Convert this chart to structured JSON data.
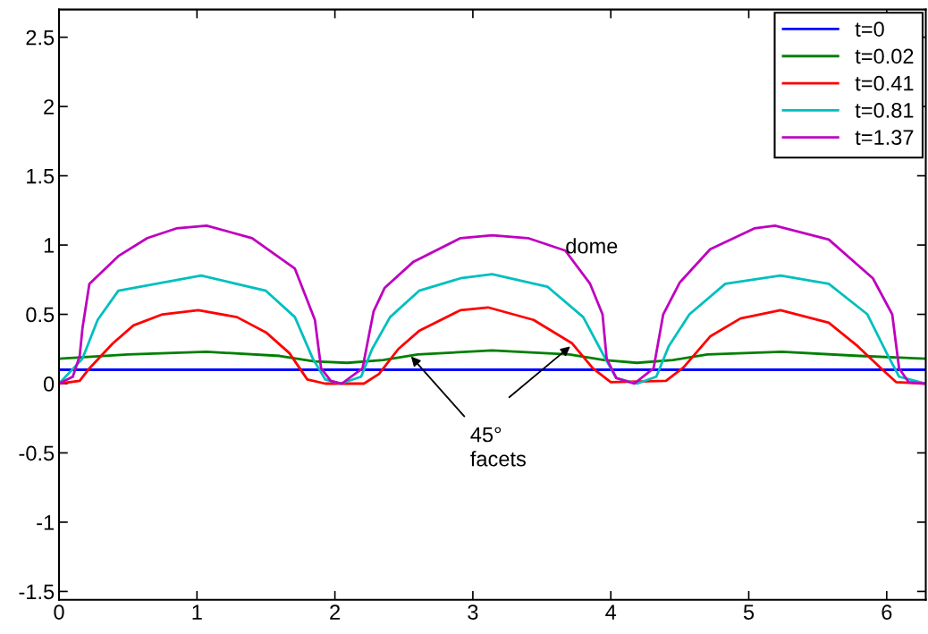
{
  "chart_data": {
    "type": "line",
    "xlim": [
      0,
      6.2832
    ],
    "ylim": [
      -1.56,
      2.7
    ],
    "xticks": [
      0,
      1,
      2,
      3,
      4,
      5,
      6
    ],
    "yticks": [
      -1.5,
      -1,
      -0.5,
      0,
      0.5,
      1,
      1.5,
      2,
      2.5
    ],
    "grid": false,
    "legend": "top right",
    "line_style": "solid",
    "marker": "none",
    "series": [
      {
        "name": "t=0",
        "color": "#0000ff",
        "x": [
          0,
          1,
          2,
          3,
          4,
          5,
          6.2832
        ],
        "values": [
          0.1,
          0.1,
          0.1,
          0.1,
          0.1,
          0.1,
          0.1
        ]
      },
      {
        "name": "t=0.02",
        "color": "#008000",
        "x": [
          0,
          0.5,
          1.07,
          1.6,
          1.85,
          2.09,
          2.35,
          2.6,
          3.14,
          3.7,
          3.95,
          4.19,
          4.45,
          4.7,
          5.24,
          5.8,
          6.2832
        ],
        "values": [
          0.18,
          0.21,
          0.23,
          0.2,
          0.16,
          0.15,
          0.17,
          0.21,
          0.24,
          0.21,
          0.17,
          0.15,
          0.17,
          0.21,
          0.23,
          0.2,
          0.18
        ]
      },
      {
        "name": "t=0.41",
        "color": "#ff0000",
        "x": [
          0,
          0.15,
          0.22,
          0.39,
          0.54,
          0.75,
          1.01,
          1.29,
          1.5,
          1.67,
          1.8,
          1.93,
          2.21,
          2.32,
          2.46,
          2.61,
          2.91,
          3.11,
          3.44,
          3.72,
          3.87,
          4.0,
          4.4,
          4.53,
          4.72,
          4.94,
          5.23,
          5.58,
          5.79,
          5.97,
          6.07,
          6.2832
        ],
        "values": [
          0,
          0.02,
          0.11,
          0.29,
          0.42,
          0.5,
          0.53,
          0.48,
          0.37,
          0.22,
          0.03,
          0,
          0,
          0.07,
          0.25,
          0.38,
          0.53,
          0.55,
          0.46,
          0.29,
          0.11,
          0.01,
          0.02,
          0.12,
          0.34,
          0.47,
          0.53,
          0.44,
          0.27,
          0.1,
          0.01,
          0
        ]
      },
      {
        "name": "t=0.81",
        "color": "#00bfbf",
        "x": [
          0,
          0.17,
          0.28,
          0.43,
          1.03,
          1.5,
          1.71,
          1.84,
          1.93,
          2.04,
          2.19,
          2.27,
          2.4,
          2.61,
          2.91,
          3.14,
          3.54,
          3.8,
          3.95,
          4.04,
          4.19,
          4.33,
          4.42,
          4.57,
          4.83,
          5.23,
          5.58,
          5.86,
          6.0,
          6.09,
          6.2832
        ],
        "values": [
          0,
          0.18,
          0.46,
          0.67,
          0.78,
          0.67,
          0.48,
          0.18,
          0.03,
          0,
          0.05,
          0.25,
          0.48,
          0.67,
          0.76,
          0.79,
          0.7,
          0.48,
          0.2,
          0.04,
          0,
          0.05,
          0.27,
          0.5,
          0.72,
          0.78,
          0.72,
          0.5,
          0.22,
          0.05,
          0
        ]
      },
      {
        "name": "t=1.37",
        "color": "#bf00bf",
        "x": [
          0,
          0.1,
          0.15,
          0.17,
          0.22,
          0.43,
          0.64,
          0.85,
          1.07,
          1.4,
          1.71,
          1.855,
          1.9,
          1.97,
          2.05,
          2.2,
          2.28,
          2.36,
          2.57,
          2.91,
          3.14,
          3.4,
          3.67,
          3.85,
          3.94,
          3.97,
          4.04,
          4.17,
          4.31,
          4.38,
          4.5,
          4.72,
          5.04,
          5.19,
          5.58,
          5.9,
          6.04,
          6.09,
          6.16,
          6.2832
        ],
        "values": [
          0,
          0.05,
          0.2,
          0.4,
          0.72,
          0.92,
          1.05,
          1.12,
          1.14,
          1.05,
          0.83,
          0.46,
          0.11,
          0.02,
          0,
          0.11,
          0.52,
          0.69,
          0.88,
          1.05,
          1.07,
          1.05,
          0.96,
          0.72,
          0.5,
          0.18,
          0.04,
          0,
          0.11,
          0.5,
          0.73,
          0.97,
          1.12,
          1.14,
          1.04,
          0.76,
          0.5,
          0.11,
          0.01,
          0
        ]
      }
    ],
    "annotations": [
      {
        "text": "dome",
        "x": 3.67,
        "y": 0.98
      },
      {
        "text": "45°\nfacets",
        "x": 2.54,
        "y": 0.21
      }
    ]
  }
}
